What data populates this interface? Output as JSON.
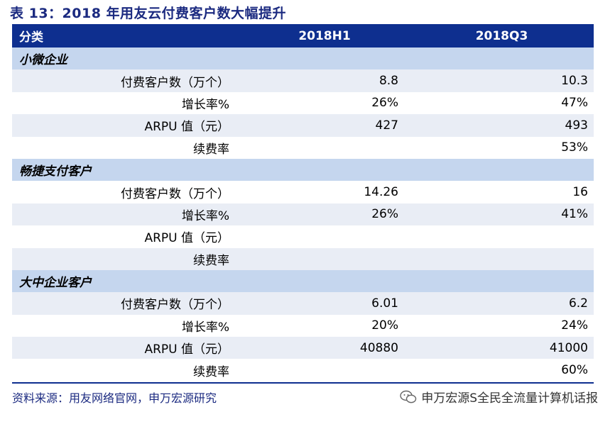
{
  "title": "表 13：2018 年用友云付费客户数大幅提升",
  "header": {
    "col0": "分类",
    "col1": "2018H1",
    "col2": "2018Q3"
  },
  "sections": [
    {
      "name": "小微企业",
      "rows": [
        {
          "label": "付费客户数（万个）",
          "h1": "8.8",
          "q3": "10.3"
        },
        {
          "label": "增长率%",
          "h1": "26%",
          "q3": "47%"
        },
        {
          "label": "ARPU 值（元）",
          "h1": "427",
          "q3": "493"
        },
        {
          "label": "续费率",
          "h1": "",
          "q3": "53%"
        }
      ]
    },
    {
      "name": "畅捷支付客户",
      "rows": [
        {
          "label": "付费客户数（万个）",
          "h1": "14.26",
          "q3": "16"
        },
        {
          "label": "增长率%",
          "h1": "26%",
          "q3": "41%"
        },
        {
          "label": "ARPU 值（元）",
          "h1": "",
          "q3": ""
        },
        {
          "label": "续费率",
          "h1": "",
          "q3": ""
        }
      ]
    },
    {
      "name": "大中企业客户",
      "rows": [
        {
          "label": "付费客户数（万个）",
          "h1": "6.01",
          "q3": "6.2"
        },
        {
          "label": "增长率%",
          "h1": "20%",
          "q3": "24%"
        },
        {
          "label": "ARPU 值（元）",
          "h1": "40880",
          "q3": "41000"
        },
        {
          "label": "续费率",
          "h1": "",
          "q3": "60%"
        }
      ]
    }
  ],
  "source": "资料来源：用友网络官网，申万宏源研究",
  "watermark": {
    "text": "申万宏源S全民全流量计算机话报",
    "icon": "wechat-icon"
  },
  "colors": {
    "header_bg": "#0e2f8f",
    "section_bg": "#c5d6ee",
    "alt_row_bg": "#e9edf5",
    "title": "#1b2a80"
  }
}
